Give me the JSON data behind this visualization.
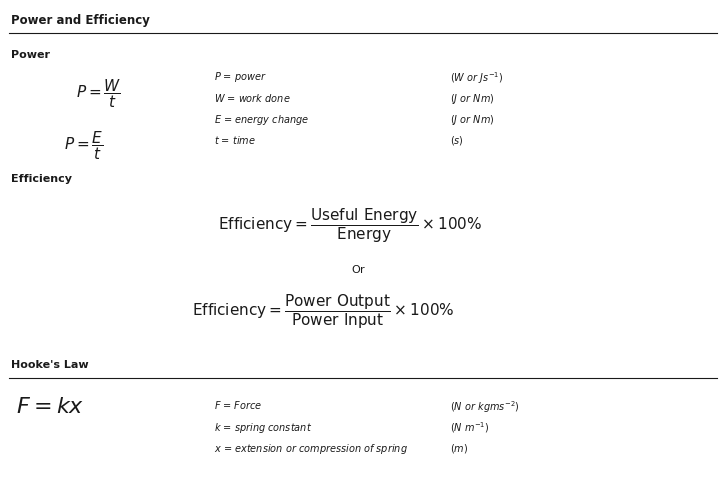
{
  "title": "Power and Efficiency",
  "section1_label": "Power",
  "section2_label": "Efficiency",
  "section3_label": "Hooke's Law",
  "bg_color": "#ffffff",
  "text_color": "#1a1a1a",
  "line_color": "#1a1a1a",
  "fig_width": 7.26,
  "fig_height": 4.96,
  "dpi": 100,
  "title_fontsize": 8.5,
  "section_fontsize": 8,
  "formula_fontsize": 11,
  "desc_fontsize": 7,
  "hookefx_fontsize": 16,
  "eff_fontsize": 11
}
